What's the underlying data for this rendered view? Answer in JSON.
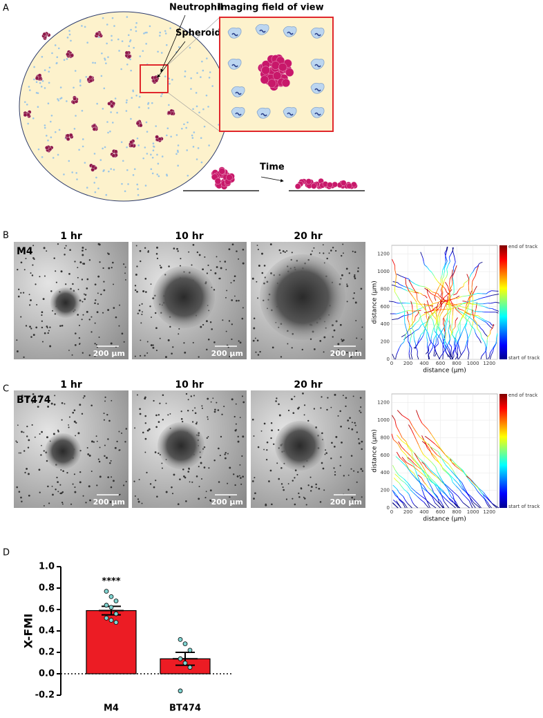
{
  "panel_a": {
    "label": "A",
    "neutrophil": "Neutrophil",
    "spheroid": "Spheroid",
    "imaging_title": "Imaging field of view",
    "time": "Time"
  },
  "panel_b": {
    "label": "B",
    "sample": "M4",
    "timepoints": [
      "1 hr",
      "10 hr",
      "20 hr"
    ],
    "scale_bar": "200 µm"
  },
  "panel_c": {
    "label": "C",
    "sample": "BT474",
    "timepoints": [
      "1 hr",
      "10 hr",
      "20 hr"
    ],
    "scale_bar": "200 µm"
  },
  "track_axes": {
    "x_label": "distance (μm)",
    "y_label": "distance (μm)",
    "xlim": [
      0,
      1300
    ],
    "ylim": [
      0,
      1300
    ],
    "xticks": [
      0,
      200,
      400,
      600,
      800,
      1000,
      1200
    ],
    "yticks": [
      0,
      200,
      400,
      600,
      800,
      1000,
      1200
    ],
    "colorbar_top": "end of track",
    "colorbar_bottom": "start of track"
  },
  "panel_d": {
    "label": "D"
  },
  "chart_data": {
    "type": "bar",
    "y_label": "X-FMI",
    "annotation": "****",
    "categories": [
      "M4",
      "BT474"
    ],
    "values": [
      0.59,
      0.14
    ],
    "errors": [
      0.04,
      0.06
    ],
    "points": [
      [
        0.77,
        0.72,
        0.68,
        0.64,
        0.62,
        0.56,
        0.52,
        0.5,
        0.48
      ],
      [
        0.32,
        0.28,
        0.22,
        0.14,
        0.1,
        0.06,
        -0.16
      ]
    ],
    "color": "#ec1c24",
    "point_color": "#7fd3d0",
    "ylim": [
      -0.2,
      1.0
    ],
    "yticks": [
      -0.2,
      {
        "value": 0,
        "label": "0.0"
      },
      0.2,
      0.4,
      0.6,
      0.8,
      {
        "value": 1,
        "label": "1.0"
      }
    ]
  }
}
